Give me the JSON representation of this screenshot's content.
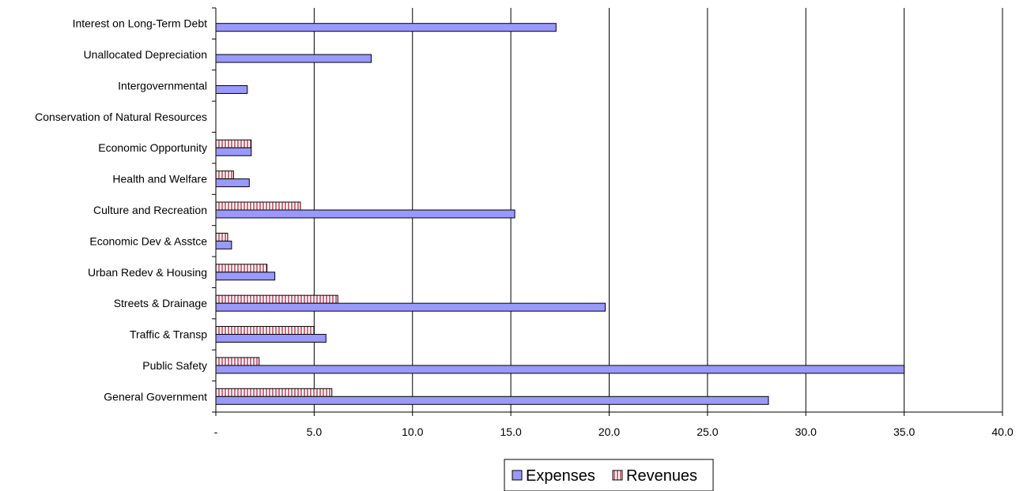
{
  "chart_data": {
    "type": "bar",
    "orientation": "horizontal",
    "categories": [
      "Interest on Long-Term Debt",
      "Unallocated Depreciation",
      "Intergovernmental",
      "Conservation of Natural Resources",
      "Economic Opportunity",
      "Health and Welfare",
      "Culture and Recreation",
      "Economic Dev & Asstce",
      "Urban Redev & Housing",
      "Streets & Drainage",
      "Traffic & Transp",
      "Public Safety",
      "General Government"
    ],
    "series": [
      {
        "name": "Expenses",
        "color": "#9999ff",
        "values": [
          17.3,
          7.9,
          1.6,
          0,
          1.8,
          1.7,
          15.2,
          0.8,
          3.0,
          19.8,
          5.6,
          35.0,
          28.1
        ]
      },
      {
        "name": "Revenues",
        "color": "#ff9999",
        "pattern": "vertical-stripes",
        "values": [
          0,
          0,
          0,
          0,
          1.8,
          0.9,
          4.3,
          0.6,
          2.6,
          6.2,
          5.0,
          2.2,
          5.9
        ]
      }
    ],
    "xlim": [
      0,
      40
    ],
    "xticks": [
      "-",
      "5.0",
      "10.0",
      "15.0",
      "20.0",
      "25.0",
      "30.0",
      "35.0",
      "40.0"
    ],
    "grid": "vertical",
    "legend": "bottom-center"
  }
}
